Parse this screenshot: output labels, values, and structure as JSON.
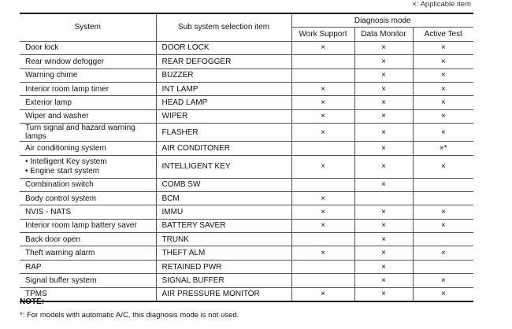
{
  "legend": "×: Applicable item",
  "headers": {
    "system": "System",
    "sub": "Sub system selection item",
    "mode": "Diagnosis mode",
    "work": "Work Support",
    "data": "Data Monitor",
    "active": "Active Test"
  },
  "rows": [
    {
      "system": "Door lock",
      "sub": "DOOR LOCK",
      "work": "×",
      "data": "×",
      "active": "×"
    },
    {
      "system": "Rear window defogger",
      "sub": "REAR DEFOGGER",
      "work": "",
      "data": "×",
      "active": "×"
    },
    {
      "system": "Warning chime",
      "sub": "BUZZER",
      "work": "",
      "data": "×",
      "active": "×"
    },
    {
      "system": "Interior room lamp timer",
      "sub": "INT LAMP",
      "work": "×",
      "data": "×",
      "active": "×"
    },
    {
      "system": "Exterior lamp",
      "sub": "HEAD LAMP",
      "work": "×",
      "data": "×",
      "active": "×"
    },
    {
      "system": "Wiper and washer",
      "sub": "WIPER",
      "work": "×",
      "data": "×",
      "active": "×"
    },
    {
      "system": "Turn signal and hazard warning lamps",
      "sub": "FLASHER",
      "work": "×",
      "data": "×",
      "active": "×"
    },
    {
      "system": "Air conditioning system",
      "sub": "AIR CONDITONER",
      "work": "",
      "data": "×",
      "active": "×*"
    },
    {
      "system_list": [
        "Intelligent Key system",
        "Engine start system"
      ],
      "sub": "INTELLIGENT KEY",
      "work": "×",
      "data": "×",
      "active": "×"
    },
    {
      "system": "Combination switch",
      "sub": "COMB SW",
      "work": "",
      "data": "×",
      "active": ""
    },
    {
      "system": "Body control system",
      "sub": "BCM",
      "work": "×",
      "data": "",
      "active": ""
    },
    {
      "system": "NVIS - NATS",
      "sub": "IMMU",
      "work": "×",
      "data": "×",
      "active": "×"
    },
    {
      "system": "Interior room lamp battery saver",
      "sub": "BATTERY SAVER",
      "work": "×",
      "data": "×",
      "active": "×"
    },
    {
      "system": "Back door open",
      "sub": "TRUNK",
      "work": "",
      "data": "×",
      "active": ""
    },
    {
      "system": "Theft warning alarm",
      "sub": "THEFT ALM",
      "work": "×",
      "data": "×",
      "active": "×"
    },
    {
      "system": "RAP",
      "sub": "RETAINED PWR",
      "work": "",
      "data": "×",
      "active": ""
    },
    {
      "system": "Signal buffer system",
      "sub": "SIGNAL BUFFER",
      "work": "",
      "data": "×",
      "active": "×"
    },
    {
      "system": "TPMS",
      "sub": "AIR PRESSURE MONITOR",
      "work": "×",
      "data": "×",
      "active": "×"
    }
  ],
  "note": {
    "title": "NOTE:",
    "text": "*: For models with automatic A/C, this diagnosis mode is not used."
  }
}
